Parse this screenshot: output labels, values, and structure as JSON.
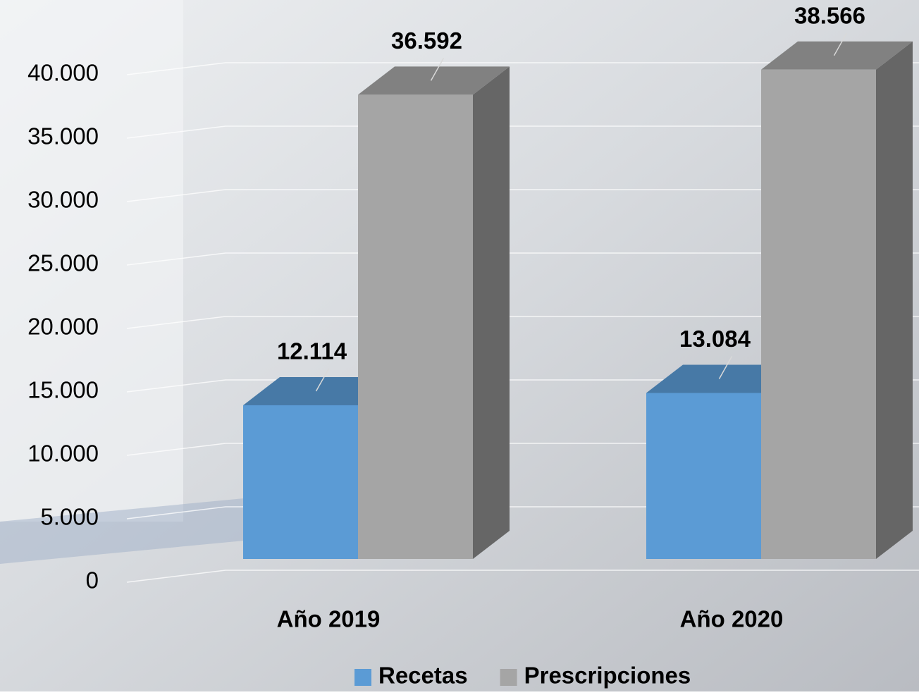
{
  "chart_data": {
    "type": "bar3d",
    "categories": [
      "Año 2019",
      "Año 2020"
    ],
    "series": [
      {
        "name": "Recetas",
        "color": "#5b9bd5",
        "values": [
          12114,
          13084
        ],
        "value_labels": [
          "12.114",
          "13.084"
        ]
      },
      {
        "name": "Prescripciones",
        "color": "#a5a5a5",
        "values": [
          36592,
          38566
        ],
        "value_labels": [
          "36.592",
          "38.566"
        ]
      }
    ],
    "ylim": [
      0,
      40000
    ],
    "yticks": [
      0,
      {
        "value": 5000,
        "label": "5.000"
      },
      {
        "value": 10000,
        "label": "10.000"
      },
      {
        "value": 15000,
        "label": "15.000"
      },
      {
        "value": 20000,
        "label": "20.000"
      },
      {
        "value": 25000,
        "label": "25.000"
      },
      {
        "value": 30000,
        "label": "30.000"
      },
      {
        "value": 35000,
        "label": "35.000"
      },
      {
        "value": 40000,
        "label": "40.000"
      }
    ],
    "grid": true,
    "legend": "bottom"
  }
}
